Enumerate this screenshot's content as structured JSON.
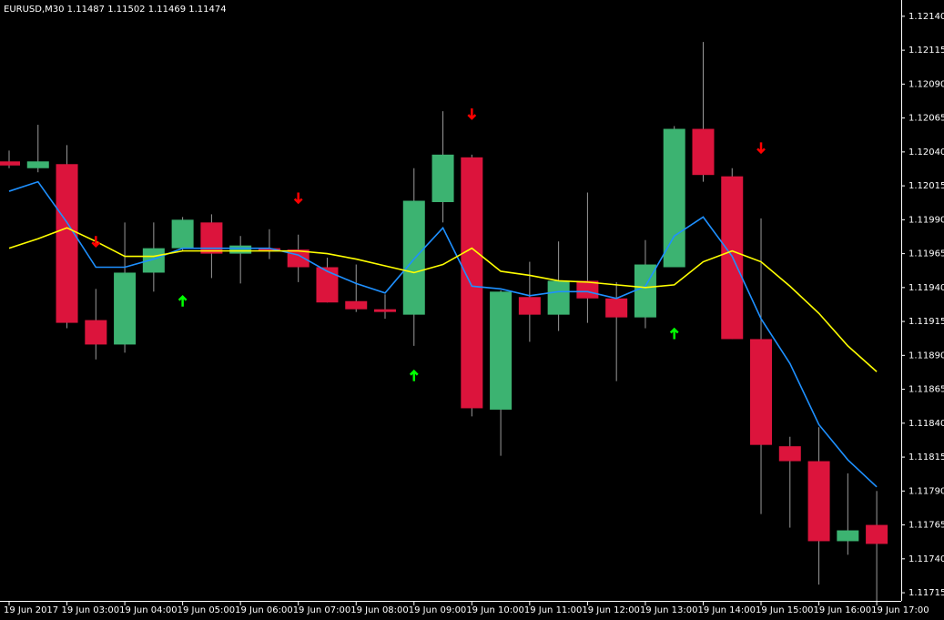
{
  "chart_data": {
    "type": "candlestick",
    "title": "EURUSD,M30  1.11487 1.11502 1.11469 1.11474",
    "categories": [
      "19 Jun 2017",
      null,
      "19 Jun 03:00",
      null,
      "19 Jun 04:00",
      null,
      "19 Jun 05:00",
      null,
      "19 Jun 06:00",
      null,
      "19 Jun 07:00",
      null,
      "19 Jun 08:00",
      null,
      "19 Jun 09:00",
      null,
      "19 Jun 10:00",
      null,
      "19 Jun 11:00",
      null,
      "19 Jun 12:00",
      null,
      "19 Jun 13:00",
      null,
      "19 Jun 14:00",
      null,
      "19 Jun 15:00",
      null,
      "19 Jun 16:00",
      null,
      "19 Jun 17:00"
    ],
    "open": [
      1.12033,
      1.12028,
      1.12031,
      1.11916,
      1.11898,
      1.11951,
      1.11969,
      1.11988,
      1.11965,
      1.11969,
      1.11968,
      1.11955,
      1.1193,
      1.11924,
      1.1192,
      1.12003,
      1.12036,
      1.1185,
      1.11933,
      1.1192,
      1.11945,
      1.11932,
      1.11918,
      1.11955,
      1.12057,
      1.12022,
      1.11902,
      1.11823,
      1.11812,
      1.11753,
      1.11765
    ],
    "high": [
      1.12041,
      1.1206,
      1.12045,
      1.11939,
      1.11988,
      1.11988,
      1.11992,
      1.11994,
      1.11978,
      1.11983,
      1.11979,
      1.11962,
      1.11957,
      1.11935,
      1.12028,
      1.1207,
      1.12038,
      1.11938,
      1.11959,
      1.11974,
      1.1201,
      1.11944,
      1.11975,
      1.12059,
      1.12121,
      1.12028,
      1.11991,
      1.1183,
      1.11837,
      1.11803,
      1.1179
    ],
    "low": [
      1.12028,
      1.12025,
      1.1191,
      1.11887,
      1.11892,
      1.11937,
      1.11967,
      1.11947,
      1.11943,
      1.11961,
      1.11944,
      1.11929,
      1.11922,
      1.11917,
      1.11897,
      1.11988,
      1.11845,
      1.11816,
      1.119,
      1.11908,
      1.11914,
      1.11871,
      1.1191,
      1.11955,
      1.12018,
      1.11902,
      1.11773,
      1.11763,
      1.11721,
      1.11743,
      1.11709
    ],
    "close": [
      1.1203,
      1.12033,
      1.11914,
      1.11898,
      1.11951,
      1.11969,
      1.1199,
      1.11965,
      1.11971,
      1.11967,
      1.11955,
      1.11929,
      1.11924,
      1.11922,
      1.12004,
      1.12038,
      1.11851,
      1.11937,
      1.1192,
      1.11945,
      1.11932,
      1.11918,
      1.11957,
      1.12057,
      1.12023,
      1.11902,
      1.11824,
      1.11812,
      1.11753,
      1.11761,
      1.11751
    ],
    "up_color": "#3cb371",
    "down_color": "#dc143c",
    "wick_color": "#9a9a9a",
    "lines": [
      {
        "color": "#1e90ff",
        "values": [
          1.12011,
          1.12018,
          1.11988,
          1.11955,
          1.11955,
          1.11961,
          1.11969,
          1.11969,
          1.11969,
          1.11969,
          1.11964,
          1.11952,
          1.11943,
          1.11936,
          1.11961,
          1.11984,
          1.11941,
          1.11939,
          1.11934,
          1.11937,
          1.11937,
          1.11932,
          1.11941,
          1.11978,
          1.11992,
          1.11963,
          1.11917,
          1.11884,
          1.11839,
          1.11813,
          1.11793
        ]
      },
      {
        "color": "#ffff00",
        "values": [
          1.11969,
          1.11976,
          1.11984,
          1.11974,
          1.11963,
          1.11963,
          1.11967,
          1.11967,
          1.11967,
          1.11967,
          1.11967,
          1.11965,
          1.11961,
          1.11956,
          1.11951,
          1.11957,
          1.11969,
          1.11952,
          1.11949,
          1.11945,
          1.11944,
          1.11942,
          1.1194,
          1.11942,
          1.11959,
          1.11967,
          1.11959,
          1.11941,
          1.11921,
          1.11897,
          1.11878
        ]
      }
    ],
    "signals": [
      {
        "direction": "down",
        "color": "#ff0000",
        "values": [
          null,
          null,
          null,
          1.11974,
          null,
          null,
          null,
          null,
          null,
          null,
          1.12006,
          null,
          null,
          null,
          null,
          null,
          1.12068,
          null,
          null,
          null,
          null,
          null,
          null,
          null,
          null,
          null,
          1.12043,
          null,
          null,
          null,
          null
        ]
      },
      {
        "direction": "up",
        "color": "#00ff00",
        "values": [
          null,
          null,
          null,
          null,
          null,
          null,
          1.1193,
          null,
          null,
          null,
          null,
          null,
          null,
          null,
          1.11875,
          null,
          null,
          null,
          null,
          null,
          null,
          null,
          null,
          1.11906,
          null,
          null,
          null,
          null,
          null,
          null,
          null
        ]
      }
    ],
    "ylim": [
      1.11709,
      1.12152
    ],
    "yticks": [
      {
        "value": 1.1214,
        "label": "1.12140"
      },
      1.12115,
      {
        "value": 1.1209,
        "label": "1.12090"
      },
      1.12065,
      {
        "value": 1.1204,
        "label": "1.12040"
      },
      1.12015,
      {
        "value": 1.1199,
        "label": "1.11990"
      },
      1.11965,
      {
        "value": 1.1194,
        "label": "1.11940"
      },
      1.11915,
      {
        "value": 1.1189,
        "label": "1.11890"
      },
      1.11865,
      {
        "value": 1.1184,
        "label": "1.11840"
      },
      1.11815,
      {
        "value": 1.1179,
        "label": "1.11790"
      },
      1.11765,
      {
        "value": 1.1174,
        "label": "1.11740"
      },
      1.11715
    ]
  }
}
